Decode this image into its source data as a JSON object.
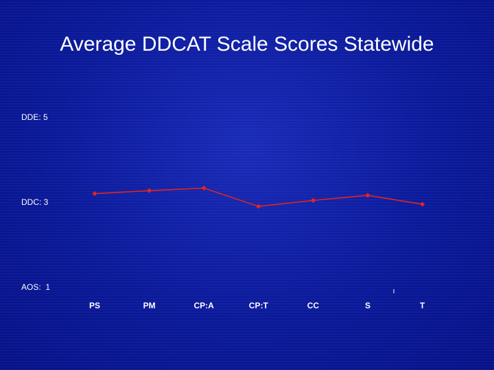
{
  "slide": {
    "title": "Average DDCAT Scale Scores Statewide"
  },
  "chart_data": {
    "type": "line",
    "title": "Average DDCAT Scale Scores Statewide",
    "categories": [
      "PS",
      "PM",
      "CP:A",
      "CP:T",
      "CC",
      "S",
      "T"
    ],
    "y_ticks": [
      {
        "value": 5,
        "label": "DDE: 5"
      },
      {
        "value": 3,
        "label": "DDC: 3"
      },
      {
        "value": 1,
        "label": "AOS:  1"
      }
    ],
    "ylim": [
      1,
      5
    ],
    "grid": false,
    "legend": "none",
    "series": [
      {
        "values": [
          3.2,
          3.27,
          3.33,
          2.9,
          3.04,
          3.16,
          2.95
        ],
        "color": "#e8231c"
      }
    ]
  }
}
